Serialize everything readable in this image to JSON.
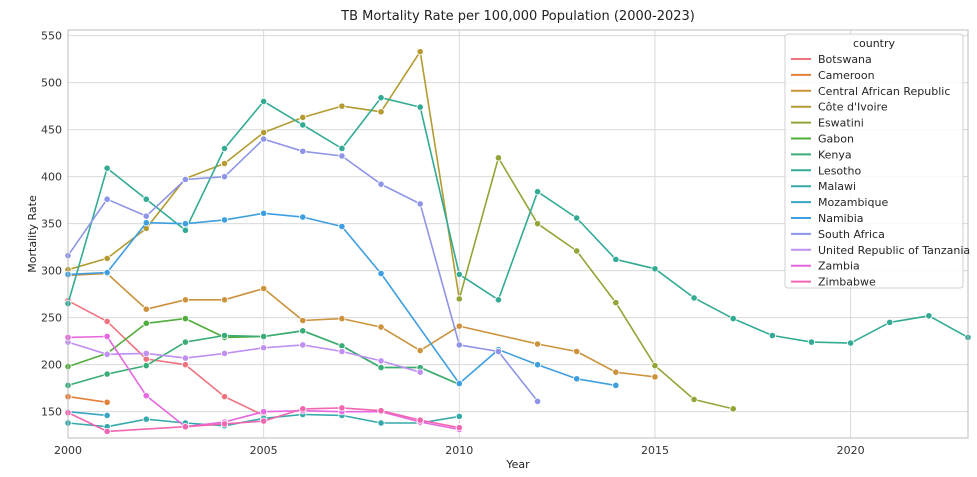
{
  "chart_data": {
    "type": "line",
    "title": "TB Mortality Rate per 100,000 Population (2000-2023)",
    "xlabel": "Year",
    "ylabel": "Mortality Rate",
    "xlim": [
      2000,
      2023
    ],
    "ylim": [
      122,
      556
    ],
    "x_ticks": [
      2000,
      2005,
      2010,
      2015,
      2020
    ],
    "y_ticks": [
      150,
      200,
      250,
      300,
      350,
      400,
      450,
      500,
      550
    ],
    "grid": true,
    "markers": true,
    "legend": {
      "title": "country",
      "position": "top-right"
    },
    "series": [
      {
        "name": "Botswana",
        "color": "#f0727f",
        "points": [
          [
            2000,
            268
          ],
          [
            2001,
            246
          ],
          [
            2002,
            206
          ],
          [
            2003,
            200
          ],
          [
            2004,
            166
          ],
          [
            2005,
            146
          ]
        ]
      },
      {
        "name": "Cameroon",
        "color": "#e3813a",
        "points": [
          [
            2000,
            166
          ],
          [
            2001,
            160
          ]
        ]
      },
      {
        "name": "Central African Republic",
        "color": "#cc923c",
        "points": [
          [
            2000,
            295
          ],
          [
            2001,
            297
          ],
          [
            2002,
            259
          ],
          [
            2003,
            269
          ],
          [
            2004,
            269
          ],
          [
            2005,
            281
          ],
          [
            2006,
            247
          ],
          [
            2007,
            249
          ],
          [
            2008,
            240
          ],
          [
            2009,
            215
          ],
          [
            2010,
            241
          ],
          [
            2012,
            222
          ],
          [
            2013,
            214
          ],
          [
            2014,
            192
          ],
          [
            2015,
            187
          ]
        ]
      },
      {
        "name": "Côte d'Ivoire",
        "color": "#b39b32",
        "points": [
          [
            2000,
            301
          ],
          [
            2001,
            313
          ],
          [
            2002,
            345
          ],
          [
            2003,
            398
          ],
          [
            2004,
            414
          ],
          [
            2005,
            447
          ],
          [
            2006,
            463
          ],
          [
            2007,
            475
          ],
          [
            2008,
            469
          ],
          [
            2009,
            533
          ],
          [
            2010,
            270
          ]
        ]
      },
      {
        "name": "Eswatini",
        "color": "#95a436",
        "points": [
          [
            2010,
            270
          ],
          [
            2011,
            420
          ],
          [
            2012,
            350
          ],
          [
            2013,
            321
          ],
          [
            2014,
            266
          ],
          [
            2015,
            199
          ],
          [
            2016,
            163
          ],
          [
            2017,
            153
          ]
        ]
      },
      {
        "name": "Gabon",
        "color": "#51ad3b",
        "points": [
          [
            2000,
            198
          ],
          [
            2001,
            212
          ],
          [
            2002,
            244
          ],
          [
            2003,
            249
          ],
          [
            2004,
            229
          ],
          [
            2005,
            230
          ],
          [
            2006,
            236
          ],
          [
            2007,
            220
          ],
          [
            2008,
            197
          ],
          [
            2009,
            197
          ],
          [
            2010,
            179
          ]
        ]
      },
      {
        "name": "Kenya",
        "color": "#3aac75",
        "points": [
          [
            2000,
            178
          ],
          [
            2001,
            190
          ],
          [
            2002,
            199
          ],
          [
            2003,
            224
          ],
          [
            2004,
            231
          ],
          [
            2005,
            230
          ],
          [
            2006,
            236
          ],
          [
            2007,
            220
          ],
          [
            2008,
            197
          ],
          [
            2009,
            197
          ],
          [
            2010,
            179
          ]
        ]
      },
      {
        "name": "Lesotho",
        "color": "#33ab94",
        "points": [
          [
            2000,
            265
          ],
          [
            2001,
            409
          ],
          [
            2002,
            376
          ],
          [
            2003,
            343
          ],
          [
            2004,
            430
          ],
          [
            2005,
            480
          ],
          [
            2006,
            455
          ],
          [
            2007,
            430
          ],
          [
            2008,
            484
          ],
          [
            2009,
            474
          ],
          [
            2010,
            296
          ],
          [
            2011,
            269
          ],
          [
            2012,
            384
          ],
          [
            2013,
            356
          ],
          [
            2014,
            312
          ],
          [
            2015,
            302
          ],
          [
            2016,
            271
          ],
          [
            2017,
            249
          ],
          [
            2018,
            231
          ],
          [
            2019,
            224
          ],
          [
            2020,
            223
          ],
          [
            2021,
            245
          ],
          [
            2022,
            252
          ],
          [
            2023,
            229
          ]
        ]
      },
      {
        "name": "Malawi",
        "color": "#36aaaa",
        "points": [
          [
            2000,
            138
          ],
          [
            2001,
            134
          ],
          [
            2002,
            142
          ],
          [
            2003,
            138
          ],
          [
            2004,
            135
          ],
          [
            2005,
            143
          ],
          [
            2006,
            147
          ],
          [
            2007,
            146
          ],
          [
            2008,
            138
          ],
          [
            2009,
            138
          ],
          [
            2010,
            145
          ]
        ]
      },
      {
        "name": "Mozambique",
        "color": "#38a6c2",
        "points": [
          [
            2000,
            150
          ],
          [
            2001,
            146
          ]
        ]
      },
      {
        "name": "Namibia",
        "color": "#3d9ee0",
        "points": [
          [
            2000,
            296
          ],
          [
            2001,
            298
          ],
          [
            2002,
            351
          ],
          [
            2003,
            350
          ],
          [
            2004,
            354
          ],
          [
            2005,
            361
          ],
          [
            2006,
            357
          ],
          [
            2007,
            347
          ],
          [
            2008,
            297
          ],
          [
            2010,
            180
          ],
          [
            2011,
            216
          ],
          [
            2012,
            200
          ],
          [
            2013,
            185
          ],
          [
            2014,
            178
          ]
        ]
      },
      {
        "name": "South Africa",
        "color": "#8f95e6",
        "points": [
          [
            2000,
            316
          ],
          [
            2001,
            376
          ],
          [
            2002,
            358
          ],
          [
            2003,
            397
          ],
          [
            2004,
            400
          ],
          [
            2005,
            440
          ],
          [
            2006,
            427
          ],
          [
            2007,
            422
          ],
          [
            2008,
            392
          ],
          [
            2009,
            371
          ],
          [
            2010,
            221
          ],
          [
            2011,
            214
          ],
          [
            2012,
            161
          ]
        ]
      },
      {
        "name": "United Republic of Tanzania",
        "color": "#c08ff2",
        "points": [
          [
            2000,
            224
          ],
          [
            2001,
            211
          ],
          [
            2002,
            212
          ],
          [
            2003,
            207
          ],
          [
            2004,
            212
          ],
          [
            2005,
            218
          ],
          [
            2006,
            221
          ],
          [
            2007,
            214
          ],
          [
            2008,
            204
          ],
          [
            2009,
            192
          ]
        ]
      },
      {
        "name": "Zambia",
        "color": "#e667df",
        "points": [
          [
            2000,
            229
          ],
          [
            2001,
            230
          ],
          [
            2002,
            167
          ],
          [
            2003,
            134
          ],
          [
            2004,
            139
          ],
          [
            2005,
            150
          ],
          [
            2006,
            151
          ],
          [
            2007,
            150
          ],
          [
            2008,
            150
          ],
          [
            2009,
            139
          ],
          [
            2010,
            131
          ]
        ]
      },
      {
        "name": "Zimbabwe",
        "color": "#f266b1",
        "points": [
          [
            2000,
            149
          ],
          [
            2001,
            129
          ],
          [
            2003,
            134
          ],
          [
            2004,
            137
          ],
          [
            2005,
            140
          ],
          [
            2006,
            153
          ],
          [
            2007,
            154
          ],
          [
            2008,
            151
          ],
          [
            2009,
            141
          ],
          [
            2010,
            133
          ]
        ]
      }
    ]
  }
}
